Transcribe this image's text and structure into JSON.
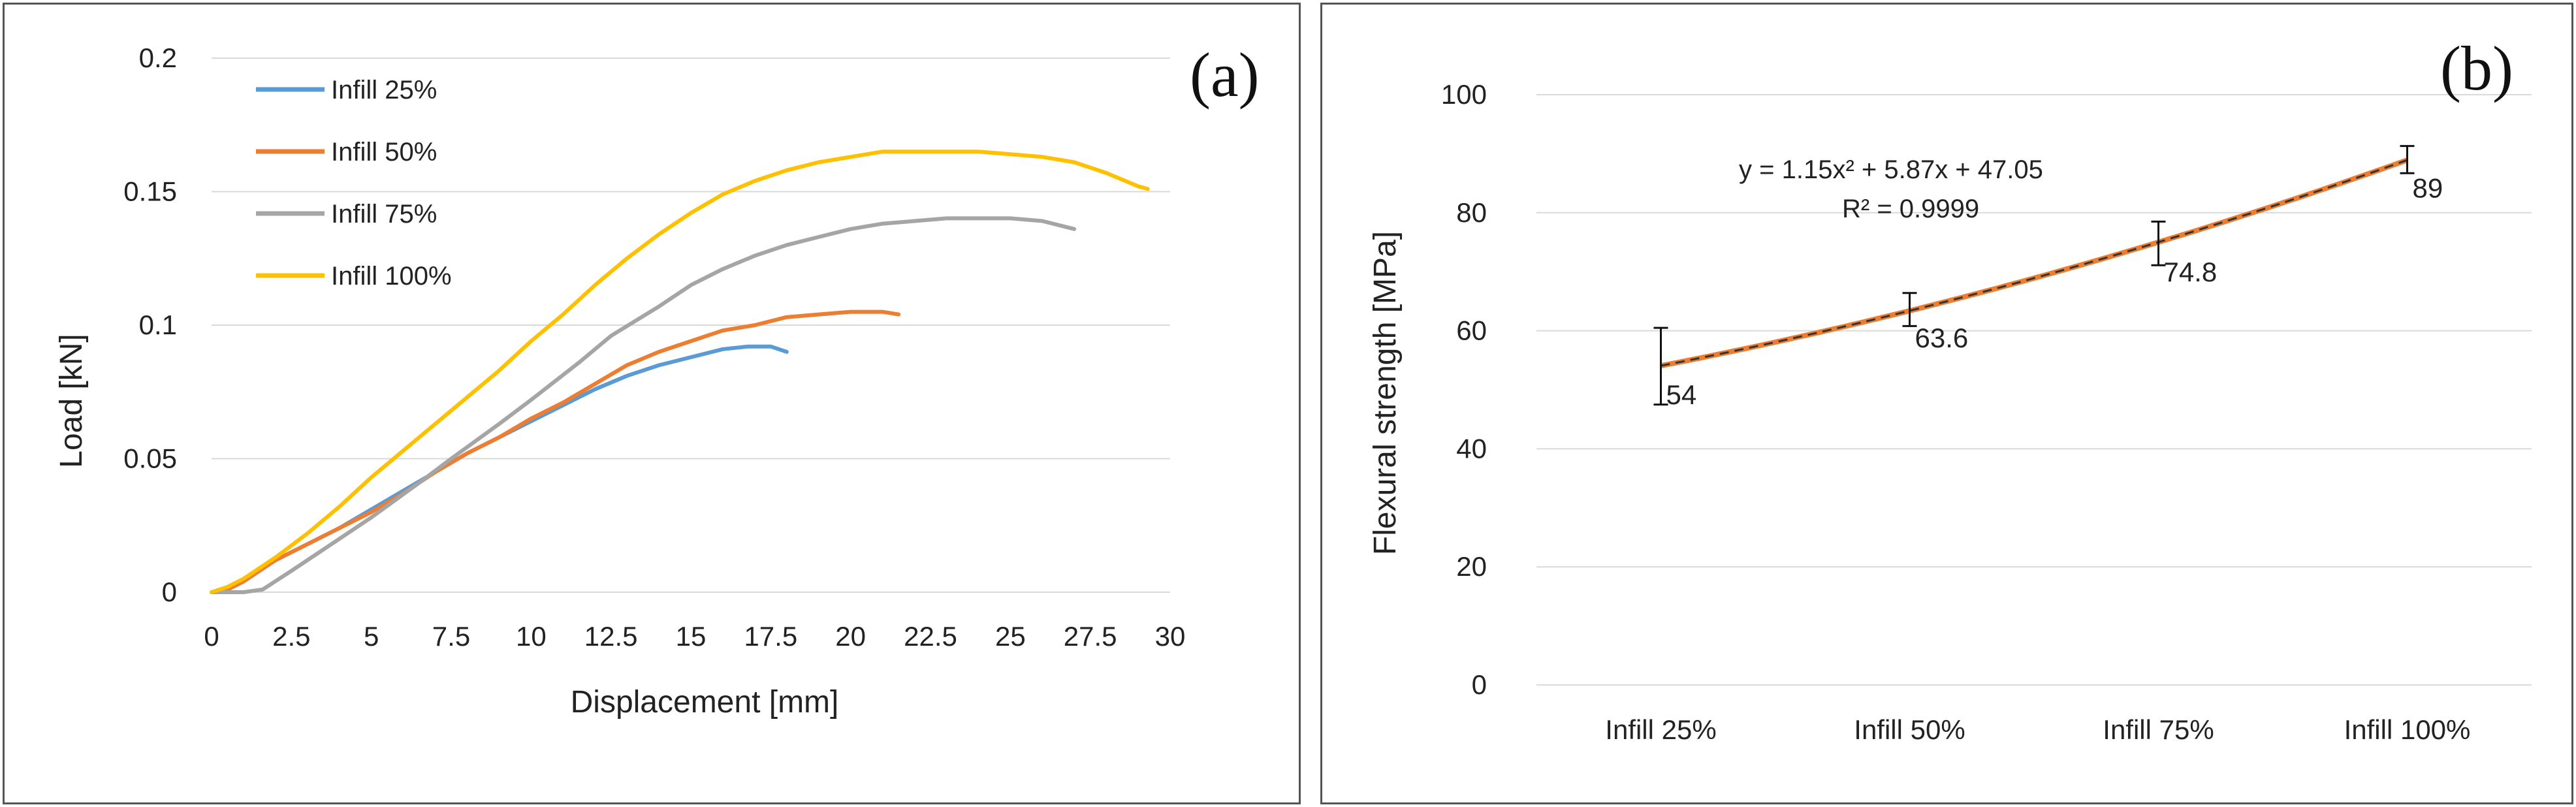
{
  "chart_data": [
    {
      "panel": "(a)",
      "type": "line",
      "xlabel": "Displacement [mm]",
      "ylabel": "Load [kN]",
      "xlim": [
        0,
        30
      ],
      "ylim": [
        0,
        0.2
      ],
      "x_ticks": [
        "0",
        "2.5",
        "5",
        "7.5",
        "10",
        "12.5",
        "15",
        "17.5",
        "20",
        "22.5",
        "25",
        "27.5",
        "30"
      ],
      "y_ticks": [
        "0",
        "0.05",
        "0.1",
        "0.15",
        "0.2"
      ],
      "grid": "horizontal",
      "legend_position": "top-left",
      "series": [
        {
          "name": "Infill 25%",
          "color": "#5B9BD5",
          "x": [
            0,
            0.5,
            1,
            2,
            3,
            4,
            5,
            6,
            7,
            8,
            9,
            10,
            11,
            12,
            13,
            14,
            15,
            16,
            16.8,
            17.5,
            18
          ],
          "y": [
            0,
            0.001,
            0.004,
            0.012,
            0.018,
            0.024,
            0.031,
            0.038,
            0.045,
            0.052,
            0.058,
            0.064,
            0.07,
            0.076,
            0.081,
            0.085,
            0.088,
            0.091,
            0.092,
            0.092,
            0.09
          ]
        },
        {
          "name": "Infill 50%",
          "color": "#ED7D31",
          "x": [
            0,
            0.5,
            1,
            2,
            3,
            4,
            5,
            6,
            7,
            8,
            9,
            10,
            11,
            12,
            13,
            14,
            15,
            16,
            17,
            18,
            19,
            20,
            21,
            21.5
          ],
          "y": [
            0,
            0.001,
            0.004,
            0.012,
            0.018,
            0.024,
            0.03,
            0.037,
            0.045,
            0.052,
            0.058,
            0.065,
            0.071,
            0.078,
            0.085,
            0.09,
            0.094,
            0.098,
            0.1,
            0.103,
            0.104,
            0.105,
            0.105,
            0.104
          ]
        },
        {
          "name": "Infill 75%",
          "color": "#A5A5A5",
          "x": [
            0,
            1,
            1.6,
            2.5,
            3.5,
            5,
            6.5,
            7.5,
            9,
            10,
            11.5,
            12.5,
            14,
            15,
            16,
            17,
            18,
            19,
            20,
            21,
            22,
            23,
            24,
            25,
            26,
            27
          ],
          "y": [
            0,
            0,
            0.001,
            0.008,
            0.016,
            0.028,
            0.041,
            0.05,
            0.063,
            0.072,
            0.086,
            0.096,
            0.107,
            0.115,
            0.121,
            0.126,
            0.13,
            0.133,
            0.136,
            0.138,
            0.139,
            0.14,
            0.14,
            0.14,
            0.139,
            0.136
          ]
        },
        {
          "name": "Infill 100%",
          "color": "#FFC000",
          "x": [
            0,
            0.5,
            1,
            2,
            3,
            4,
            5,
            6,
            7,
            8,
            9,
            10,
            11,
            12,
            13,
            14,
            15,
            16,
            17,
            18,
            19,
            20,
            21,
            22,
            23,
            24,
            25,
            26,
            27,
            28,
            29,
            29.3
          ],
          "y": [
            0,
            0.002,
            0.005,
            0.013,
            0.022,
            0.032,
            0.043,
            0.053,
            0.063,
            0.073,
            0.083,
            0.094,
            0.104,
            0.115,
            0.125,
            0.134,
            0.142,
            0.149,
            0.154,
            0.158,
            0.161,
            0.163,
            0.165,
            0.165,
            0.165,
            0.165,
            0.164,
            0.163,
            0.161,
            0.157,
            0.152,
            0.151
          ]
        }
      ]
    },
    {
      "panel": "(b)",
      "type": "line",
      "xlabel": "",
      "ylabel": "Flexural strength  [MPa]",
      "ylim": [
        0,
        100
      ],
      "y_ticks": [
        "0",
        "20",
        "40",
        "60",
        "80",
        "100"
      ],
      "categories": [
        "Infill 25%",
        "Infill 50%",
        "Infill 75%",
        "Infill 100%"
      ],
      "grid": "horizontal",
      "series": [
        {
          "name": "Flexural strength",
          "color": "#ED7D31",
          "values": [
            54,
            63.6,
            74.8,
            89
          ],
          "value_labels": [
            "54",
            "63.6",
            "74.8",
            "89"
          ],
          "error_bars": [
            6.5,
            2.8,
            3.7,
            2.3
          ]
        }
      ],
      "trendline": {
        "type": "polynomial",
        "coefficients": [
          1.15,
          5.87,
          47.05
        ],
        "color": "#333333",
        "style": "dashed",
        "equation": "y = 1.15x² + 5.87x + 47.05",
        "r_squared": "R² = 0.9999"
      }
    }
  ]
}
